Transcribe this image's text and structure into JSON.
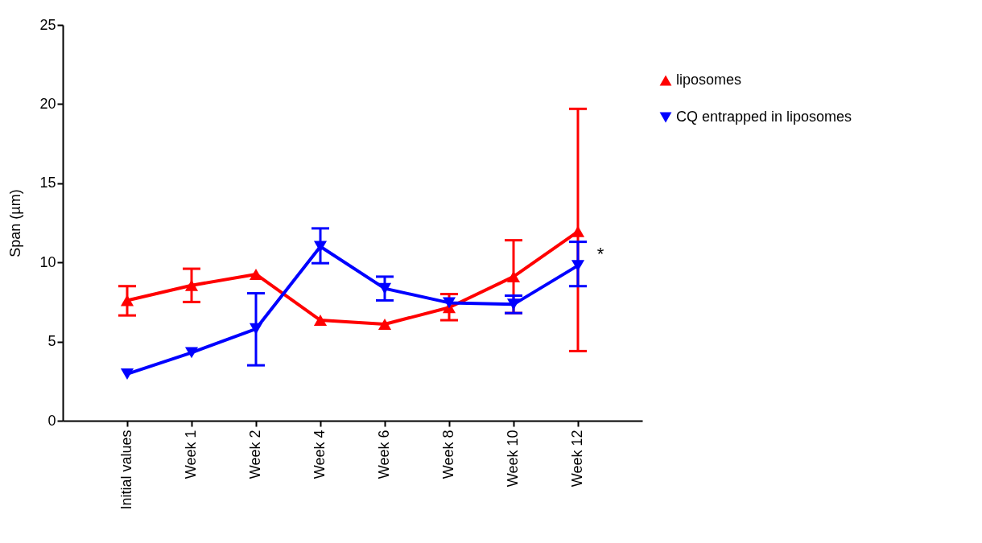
{
  "chart_data": {
    "type": "line",
    "ylabel": "Span (µm)",
    "categories": [
      "Initial values",
      "Week 1",
      "Week 2",
      "Week 4",
      "Week 6",
      "Week 8",
      "Week 10",
      "Week 12"
    ],
    "series": [
      {
        "name": "liposomes",
        "color": "#ff0000",
        "marker": "triangle",
        "values": [
          7.6,
          8.55,
          9.25,
          6.35,
          6.1,
          7.15,
          9.1,
          11.95
        ],
        "errors": [
          [
            6.65,
            8.5
          ],
          [
            7.5,
            9.6
          ],
          null,
          null,
          null,
          [
            6.35,
            8.0
          ],
          [
            6.8,
            11.4
          ],
          [
            4.4,
            19.7
          ]
        ]
      },
      {
        "name": "CQ entrapped in liposomes",
        "color": "#0000ff",
        "marker": "triangle-down",
        "values": [
          2.95,
          4.3,
          5.8,
          11.0,
          8.35,
          7.45,
          7.35,
          9.8
        ],
        "errors": [
          null,
          null,
          [
            3.5,
            8.05
          ],
          [
            9.95,
            12.15
          ],
          [
            7.6,
            9.1
          ],
          null,
          [
            6.8,
            7.9
          ],
          [
            8.5,
            11.3
          ]
        ]
      }
    ],
    "ylim": [
      0,
      25
    ],
    "yticks": [
      0,
      5,
      10,
      15,
      20,
      25
    ],
    "grid": false,
    "legend": "top right",
    "annotations": [
      {
        "text": "*",
        "x": "Week 12",
        "y": 10.5
      }
    ]
  }
}
